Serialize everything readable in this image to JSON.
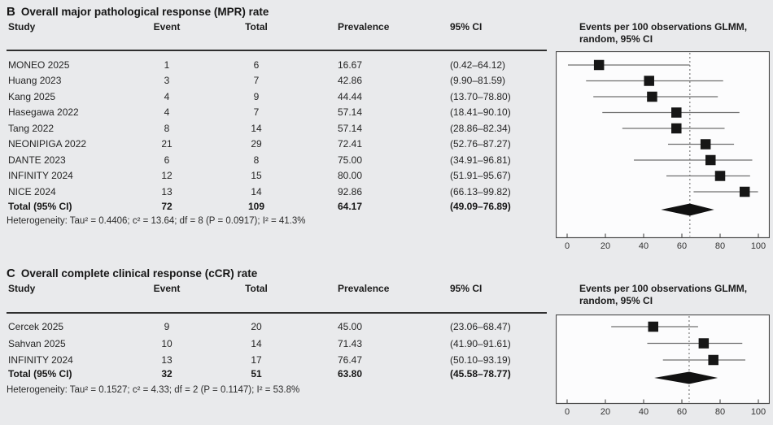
{
  "page": {
    "background": "#e9eaec",
    "plot_bg": "#fcfcfd",
    "marker_color": "#161616",
    "ci_line_color": "#6f6f6f",
    "dashed_line_color": "#8e8e8e"
  },
  "panels": [
    {
      "label": "B",
      "title": "Overall major pathological response (MPR) rate",
      "columns": [
        "Study",
        "Event",
        "Total",
        "Prevalence",
        "95% CI"
      ],
      "plot_header": "Events per 100 observations GLMM,\nrandom, 95% CI",
      "rows": [
        {
          "study": "MONEO 2025",
          "event": "1",
          "total": "6",
          "prevalence": "16.67",
          "ci": "(0.42–64.12)"
        },
        {
          "study": "Huang 2023",
          "event": "3",
          "total": "7",
          "prevalence": "42.86",
          "ci": "(9.90–81.59)"
        },
        {
          "study": "Kang 2025",
          "event": "4",
          "total": "9",
          "prevalence": "44.44",
          "ci": "(13.70–78.80)"
        },
        {
          "study": "Hasegawa 2022",
          "event": "4",
          "total": "7",
          "prevalence": "57.14",
          "ci": "(18.41–90.10)"
        },
        {
          "study": "Tang 2022",
          "event": "8",
          "total": "14",
          "prevalence": "57.14",
          "ci": "(28.86–82.34)"
        },
        {
          "study": "NEONIPIGA 2022",
          "event": "21",
          "total": "29",
          "prevalence": "72.41",
          "ci": "(52.76–87.27)"
        },
        {
          "study": "DANTE 2023",
          "event": "6",
          "total": "8",
          "prevalence": "75.00",
          "ci": "(34.91–96.81)"
        },
        {
          "study": "INFINITY 2024",
          "event": "12",
          "total": "15",
          "prevalence": "80.00",
          "ci": "(51.91–95.67)"
        },
        {
          "study": "NICE 2024",
          "event": "13",
          "total": "14",
          "prevalence": "92.86",
          "ci": "(66.13–99.82)"
        }
      ],
      "total_row": {
        "study": "Total (95% CI)",
        "event": "72",
        "total": "109",
        "prevalence": "64.17",
        "ci": "(49.09–76.89)"
      },
      "heterogeneity": "Heterogeneity: Tau² = 0.4406; c² = 13.64; df = 8 (P = 0.0917); I² = 41.3%"
    },
    {
      "label": "C",
      "title": "Overall complete clinical response (cCR) rate",
      "columns": [
        "Study",
        "Event",
        "Total",
        "Prevalence",
        "95% CI"
      ],
      "plot_header": "Events per 100 observations GLMM,\nrandom, 95% CI",
      "rows": [
        {
          "study": "Cercek 2025",
          "event": "9",
          "total": "20",
          "prevalence": "45.00",
          "ci": "(23.06–68.47)"
        },
        {
          "study": "Sahvan 2025",
          "event": "10",
          "total": "14",
          "prevalence": "71.43",
          "ci": "(41.90–91.61)"
        },
        {
          "study": "INFINITY 2024",
          "event": "13",
          "total": "17",
          "prevalence": "76.47",
          "ci": "(50.10–93.19)"
        }
      ],
      "total_row": {
        "study": "Total (95% CI)",
        "event": "32",
        "total": "51",
        "prevalence": "63.80",
        "ci": "(45.58–78.77)"
      },
      "heterogeneity": "Heterogeneity: Tau² = 0.1527; c² = 4.33; df = 2 (P = 0.1147); I² = 53.8%"
    }
  ],
  "chart_data": [
    {
      "type": "forest",
      "title": "Overall major pathological response (MPR) rate",
      "xlabel": "Events per 100 observations GLMM, random, 95% CI",
      "xlim": [
        0,
        100
      ],
      "xticks": [
        0,
        20,
        40,
        60,
        80,
        100
      ],
      "studies": [
        "MONEO 2025",
        "Huang 2023",
        "Kang 2025",
        "Hasegawa 2022",
        "Tang 2022",
        "NEONIPIGA 2022",
        "DANTE 2023",
        "INFINITY 2024",
        "NICE 2024"
      ],
      "estimates": [
        16.67,
        42.86,
        44.44,
        57.14,
        57.14,
        72.41,
        75.0,
        80.0,
        92.86
      ],
      "ci_low": [
        0.42,
        9.9,
        13.7,
        18.41,
        28.86,
        52.76,
        34.91,
        51.91,
        66.13
      ],
      "ci_high": [
        64.12,
        81.59,
        78.8,
        90.1,
        82.34,
        87.27,
        96.81,
        95.67,
        99.82
      ],
      "pooled": {
        "estimate": 64.17,
        "ci_low": 49.09,
        "ci_high": 76.89
      },
      "pooled_reference_line": 64.17,
      "grid": false,
      "legend": "none"
    },
    {
      "type": "forest",
      "title": "Overall complete clinical response (cCR) rate",
      "xlabel": "Events per 100 observations GLMM, random, 95% CI",
      "xlim": [
        0,
        100
      ],
      "xticks": [
        0,
        20,
        40,
        60,
        80,
        100
      ],
      "studies": [
        "Cercek 2025",
        "Sahvan 2025",
        "INFINITY 2024"
      ],
      "estimates": [
        45.0,
        71.43,
        76.47
      ],
      "ci_low": [
        23.06,
        41.9,
        50.1
      ],
      "ci_high": [
        68.47,
        91.61,
        93.19
      ],
      "pooled": {
        "estimate": 63.8,
        "ci_low": 45.58,
        "ci_high": 78.77
      },
      "pooled_reference_line": 63.8,
      "grid": false,
      "legend": "none"
    }
  ]
}
